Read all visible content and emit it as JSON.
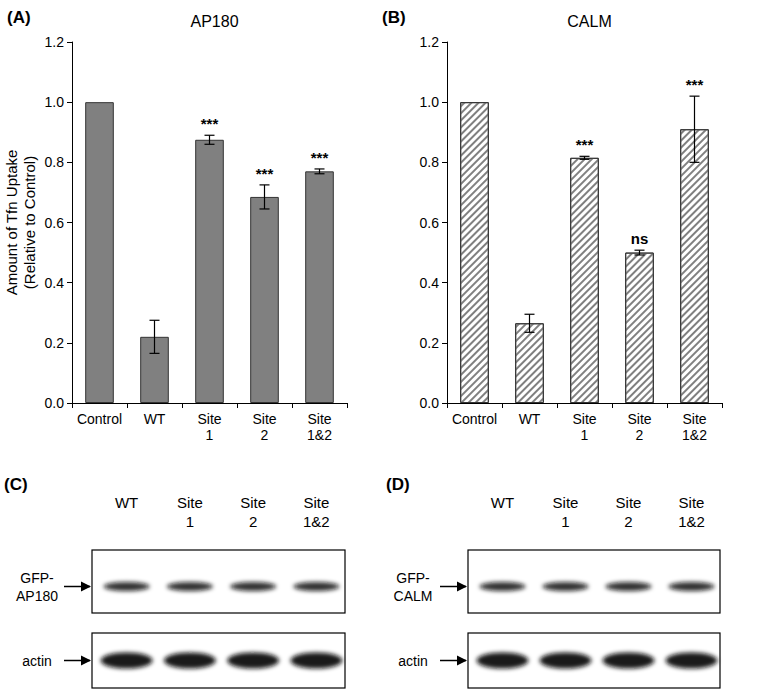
{
  "chart_data": [
    {
      "type": "bar",
      "panel_label": "(A)",
      "title": "AP180",
      "y_label": "Amount of Tfn Uptake\n(Relative to Control)",
      "categories": [
        "Control",
        "WT",
        "Site\n1",
        "Site\n2",
        "Site\n1&2"
      ],
      "values": [
        1.0,
        0.22,
        0.875,
        0.685,
        0.77
      ],
      "errors": [
        null,
        0.055,
        0.015,
        0.04,
        0.008
      ],
      "annotations": [
        null,
        null,
        "***",
        "***",
        "***"
      ],
      "color": "#808080",
      "marker": "solid",
      "ylim": [
        0,
        1.2
      ],
      "yticks": [
        {
          "value": 0,
          "label": "0.0"
        },
        0.2,
        0.4,
        0.6,
        0.8,
        {
          "value": 1,
          "label": "1.0"
        },
        1.2
      ],
      "grid": false
    },
    {
      "type": "bar",
      "panel_label": "(B)",
      "title": "CALM",
      "categories": [
        "Control",
        "WT",
        "Site\n1",
        "Site\n2",
        "Site\n1&2"
      ],
      "values": [
        1.0,
        0.265,
        0.815,
        0.5,
        0.91
      ],
      "errors": [
        null,
        0.03,
        0.005,
        0.008,
        0.11
      ],
      "annotations": [
        null,
        null,
        "***",
        "ns",
        "***"
      ],
      "color": "#808080",
      "marker": "hatched",
      "ylim": [
        0,
        1.2
      ],
      "yticks": [
        {
          "value": 0,
          "label": "0.0"
        },
        0.2,
        0.4,
        0.6,
        0.8,
        {
          "value": 1,
          "label": "1.0"
        },
        1.2
      ],
      "grid": false
    }
  ],
  "blots": [
    {
      "panel_label": "(C)",
      "lanes": [
        "WT",
        "Site\n1",
        "Site\n2",
        "Site\n1&2"
      ],
      "rows": [
        "GFP-\nAP180",
        "actin"
      ]
    },
    {
      "panel_label": "(D)",
      "lanes": [
        "WT",
        "Site\n1",
        "Site\n2",
        "Site\n1&2"
      ],
      "rows": [
        "GFP-\nCALM",
        "actin"
      ]
    }
  ]
}
